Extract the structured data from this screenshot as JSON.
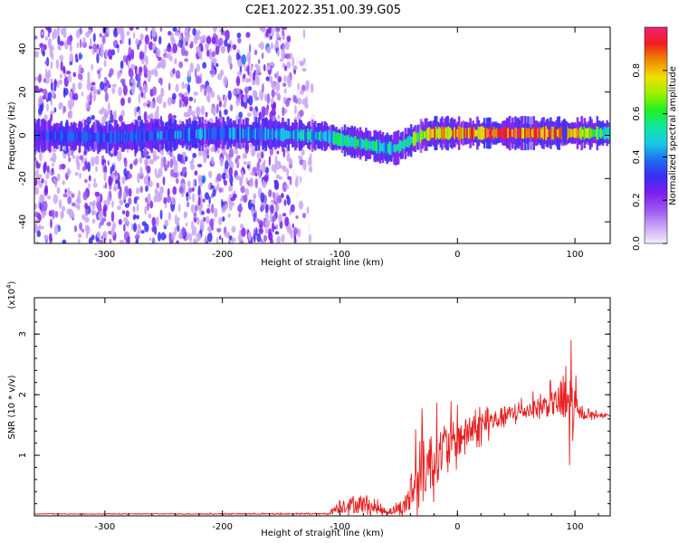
{
  "figure_title": "C2E1.2022.351.00.39.G05",
  "chart_data": [
    {
      "type": "heatmap",
      "xlabel": "Height of straight line (km)",
      "ylabel": "Frequency (Hz)",
      "xlim": [
        -360,
        130
      ],
      "ylim": [
        -50,
        50
      ],
      "x_ticks": [
        -300,
        -200,
        -100,
        0,
        100
      ],
      "y_ticks": [
        -40,
        -20,
        0,
        20,
        40
      ],
      "colorbar": {
        "label": "Normalized spectral amplitude",
        "range": [
          0.0,
          1.0
        ],
        "ticks": [
          0.0,
          0.2,
          0.4,
          0.6,
          0.8
        ],
        "colormap": [
          "#f4eefc",
          "#c9a4f5",
          "#9b59f0",
          "#7d1ff0",
          "#3a2cf5",
          "#1f6cf2",
          "#18c9e6",
          "#10e6a0",
          "#20f020",
          "#9cf000",
          "#f0e000",
          "#f08a00",
          "#f02020",
          "#f0207a"
        ]
      },
      "ridge": [
        {
          "x": -360,
          "y": 0
        },
        {
          "x": -300,
          "y": -1
        },
        {
          "x": -250,
          "y": 0
        },
        {
          "x": -200,
          "y": 1
        },
        {
          "x": -160,
          "y": 0.5
        },
        {
          "x": -130,
          "y": 0
        },
        {
          "x": -110,
          "y": -0.5
        },
        {
          "x": -100,
          "y": -2
        },
        {
          "x": -90,
          "y": -3
        },
        {
          "x": -80,
          "y": -4
        },
        {
          "x": -70,
          "y": -5
        },
        {
          "x": -60,
          "y": -6
        },
        {
          "x": -52,
          "y": -6
        },
        {
          "x": -45,
          "y": -4
        },
        {
          "x": -38,
          "y": -2
        },
        {
          "x": -30,
          "y": 0
        },
        {
          "x": -20,
          "y": 1
        },
        {
          "x": 0,
          "y": 1
        },
        {
          "x": 50,
          "y": 1
        },
        {
          "x": 90,
          "y": 1
        },
        {
          "x": 130,
          "y": 1
        }
      ],
      "ridge_amplitude": [
        {
          "x": -360,
          "a": 0.35
        },
        {
          "x": -250,
          "a": 0.4
        },
        {
          "x": -170,
          "a": 0.42
        },
        {
          "x": -130,
          "a": 0.5
        },
        {
          "x": -100,
          "a": 0.55
        },
        {
          "x": -70,
          "a": 0.55
        },
        {
          "x": -50,
          "a": 0.5
        },
        {
          "x": -30,
          "a": 0.7
        },
        {
          "x": -15,
          "a": 0.9
        },
        {
          "x": 10,
          "a": 0.85
        },
        {
          "x": 50,
          "a": 0.95
        },
        {
          "x": 90,
          "a": 0.9
        },
        {
          "x": 130,
          "a": 0.6
        }
      ],
      "noise_region_x": [
        -360,
        -120
      ]
    },
    {
      "type": "line",
      "xlabel": "Height of straight line (km)",
      "ylabel": "SNR (10 * v/v)",
      "y_multiplier": "(x10",
      "y_multiplier_exp": "4",
      "y_multiplier_close": ")",
      "xlim": [
        -360,
        130
      ],
      "ylim": [
        0,
        3.6
      ],
      "x_ticks": [
        -300,
        -200,
        -100,
        0,
        100
      ],
      "y_ticks": [
        1,
        2,
        3
      ],
      "line_color": "#e82020",
      "envelope": [
        {
          "x": -360,
          "base": 0.03,
          "spread": 0.01
        },
        {
          "x": -110,
          "base": 0.03,
          "spread": 0.02
        },
        {
          "x": -100,
          "base": 0.12,
          "spread": 0.25
        },
        {
          "x": -80,
          "base": 0.15,
          "spread": 0.35
        },
        {
          "x": -70,
          "base": 0.1,
          "spread": 0.2
        },
        {
          "x": -60,
          "base": 0.05,
          "spread": 0.1
        },
        {
          "x": -45,
          "base": 0.1,
          "spread": 0.3
        },
        {
          "x": -35,
          "base": 0.4,
          "spread": 1.4
        },
        {
          "x": -25,
          "base": 0.7,
          "spread": 1.1
        },
        {
          "x": -10,
          "base": 1.0,
          "spread": 0.9
        },
        {
          "x": 10,
          "base": 1.3,
          "spread": 0.55
        },
        {
          "x": 40,
          "base": 1.6,
          "spread": 0.35
        },
        {
          "x": 60,
          "base": 1.7,
          "spread": 0.3
        },
        {
          "x": 85,
          "base": 1.8,
          "spread": 0.5
        },
        {
          "x": 95,
          "base": 1.6,
          "spread": 1.9
        },
        {
          "x": 103,
          "base": 1.65,
          "spread": 0.2
        },
        {
          "x": 130,
          "base": 1.65,
          "spread": 0.02
        }
      ]
    }
  ]
}
